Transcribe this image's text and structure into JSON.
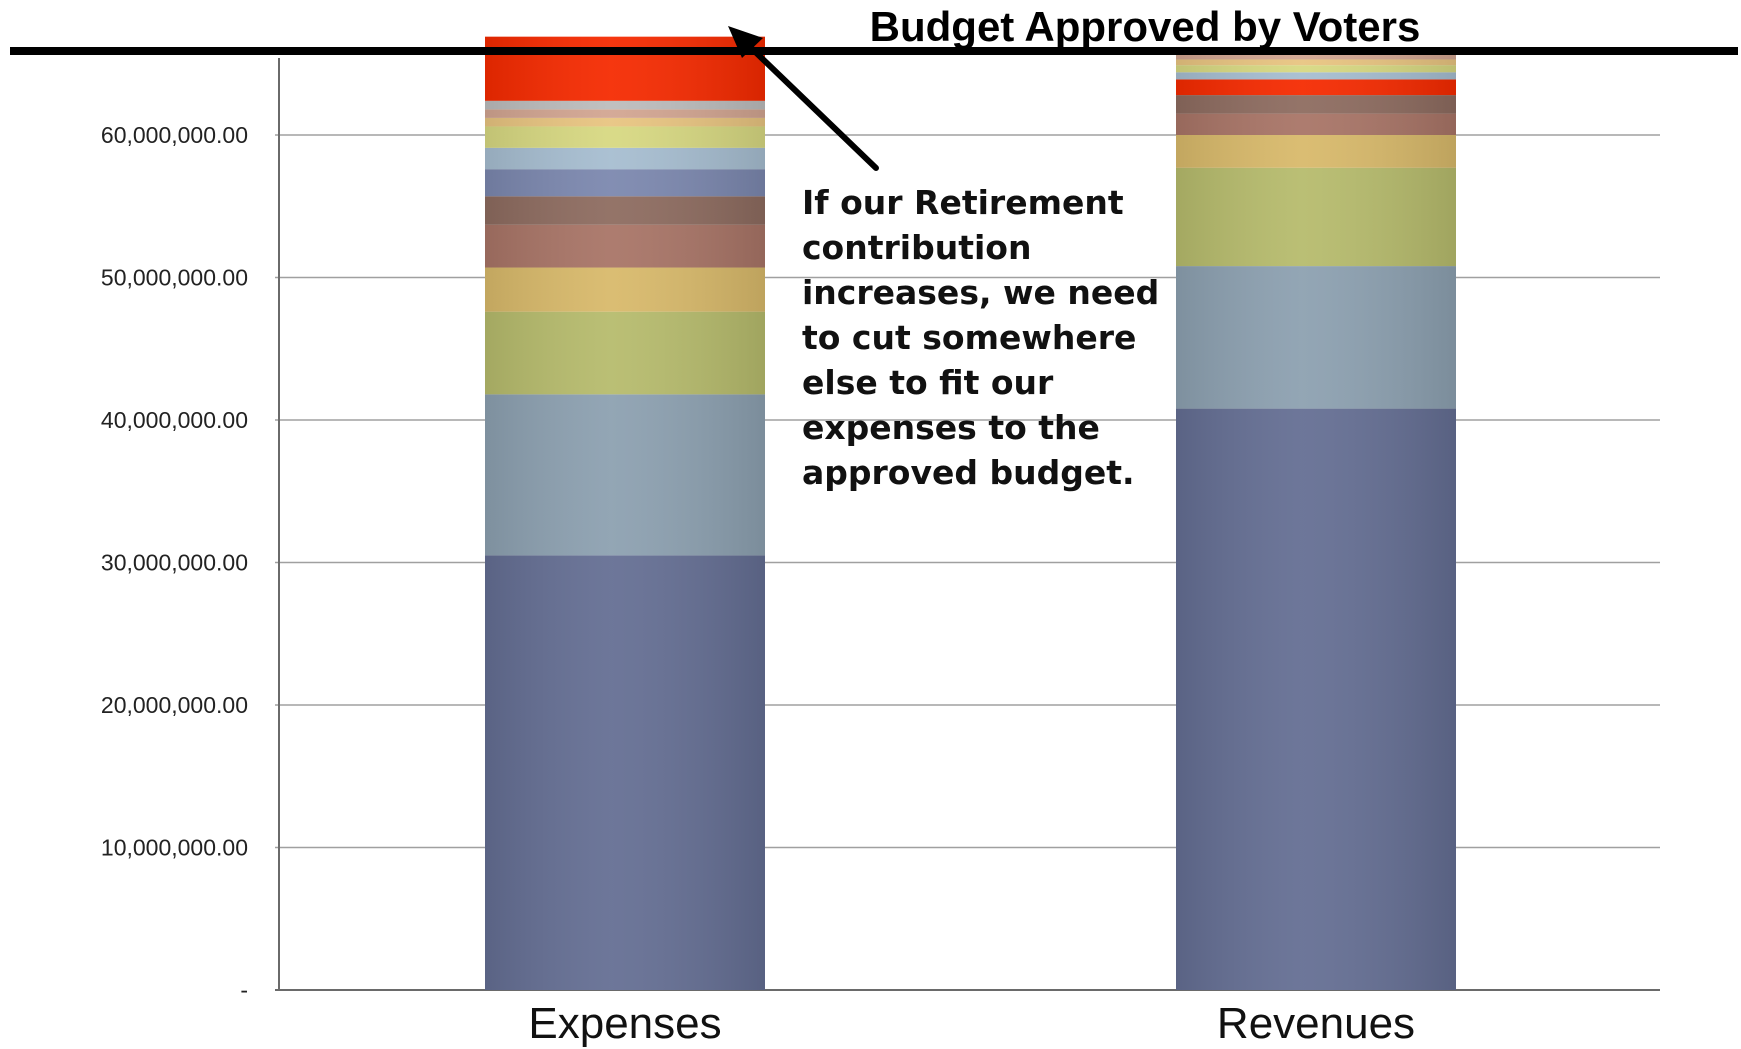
{
  "chart_data": {
    "type": "bar",
    "stacked": true,
    "categories": [
      "Expenses",
      "Revenues"
    ],
    "ylim": [
      0,
      66000000
    ],
    "yticks": [
      {
        "value": 0,
        "label": "-"
      },
      {
        "value": 10000000,
        "label": "10,000,000.00"
      },
      {
        "value": 20000000,
        "label": "20,000,000.00"
      },
      {
        "value": 30000000,
        "label": "30,000,000.00"
      },
      {
        "value": 40000000,
        "label": "40,000,000.00"
      },
      {
        "value": 50000000,
        "label": "50,000,000.00"
      },
      {
        "value": 60000000,
        "label": "60,000,000.00"
      }
    ],
    "grid": true,
    "legend": "none",
    "stacks": [
      {
        "category": "Expenses",
        "segments": [
          {
            "value": 30500000,
            "color": "#646e93"
          },
          {
            "value": 11300000,
            "color": "#8ca0b0"
          },
          {
            "value": 5800000,
            "color": "#b6bb6c"
          },
          {
            "value": 3100000,
            "color": "#d8b96a"
          },
          {
            "value": 3000000,
            "color": "#a87466"
          },
          {
            "value": 2000000,
            "color": "#8d6b5f"
          },
          {
            "value": 1900000,
            "color": "#7b87ae"
          },
          {
            "value": 1500000,
            "color": "#a6bdd0"
          },
          {
            "value": 1500000,
            "color": "#d7d881"
          },
          {
            "value": 600000,
            "color": "#e8c480"
          },
          {
            "value": 600000,
            "color": "#d2a591"
          },
          {
            "value": 600000,
            "color": "#bcbcbc"
          },
          {
            "value": 4500000,
            "color": "#f52a00"
          }
        ]
      },
      {
        "category": "Revenues",
        "segments": [
          {
            "value": 40800000,
            "color": "#646e93"
          },
          {
            "value": 10000000,
            "color": "#8ca0b0"
          },
          {
            "value": 6900000,
            "color": "#b6bb6c"
          },
          {
            "value": 2300000,
            "color": "#d8b96a"
          },
          {
            "value": 1500000,
            "color": "#a87466"
          },
          {
            "value": 1300000,
            "color": "#8d6b5f"
          },
          {
            "value": 1100000,
            "color": "#f52a00"
          },
          {
            "value": 500000,
            "color": "#a6bdd0"
          },
          {
            "value": 500000,
            "color": "#d7d881"
          },
          {
            "value": 400000,
            "color": "#e8c480"
          },
          {
            "value": 400000,
            "color": "#d2a591"
          }
        ]
      }
    ],
    "reference_line": {
      "label": "Budget Approved by Voters"
    },
    "annotation": {
      "lines": [
        "If our Retirement",
        "contribution",
        "increases, we need",
        "to cut somewhere",
        "else to fit our",
        "expenses to the",
        "approved budget."
      ]
    },
    "colors": {
      "grid": "#a0a0a0",
      "axis": "#6a6a6a",
      "reference_line": "#000000",
      "arrow": "#000000"
    }
  }
}
